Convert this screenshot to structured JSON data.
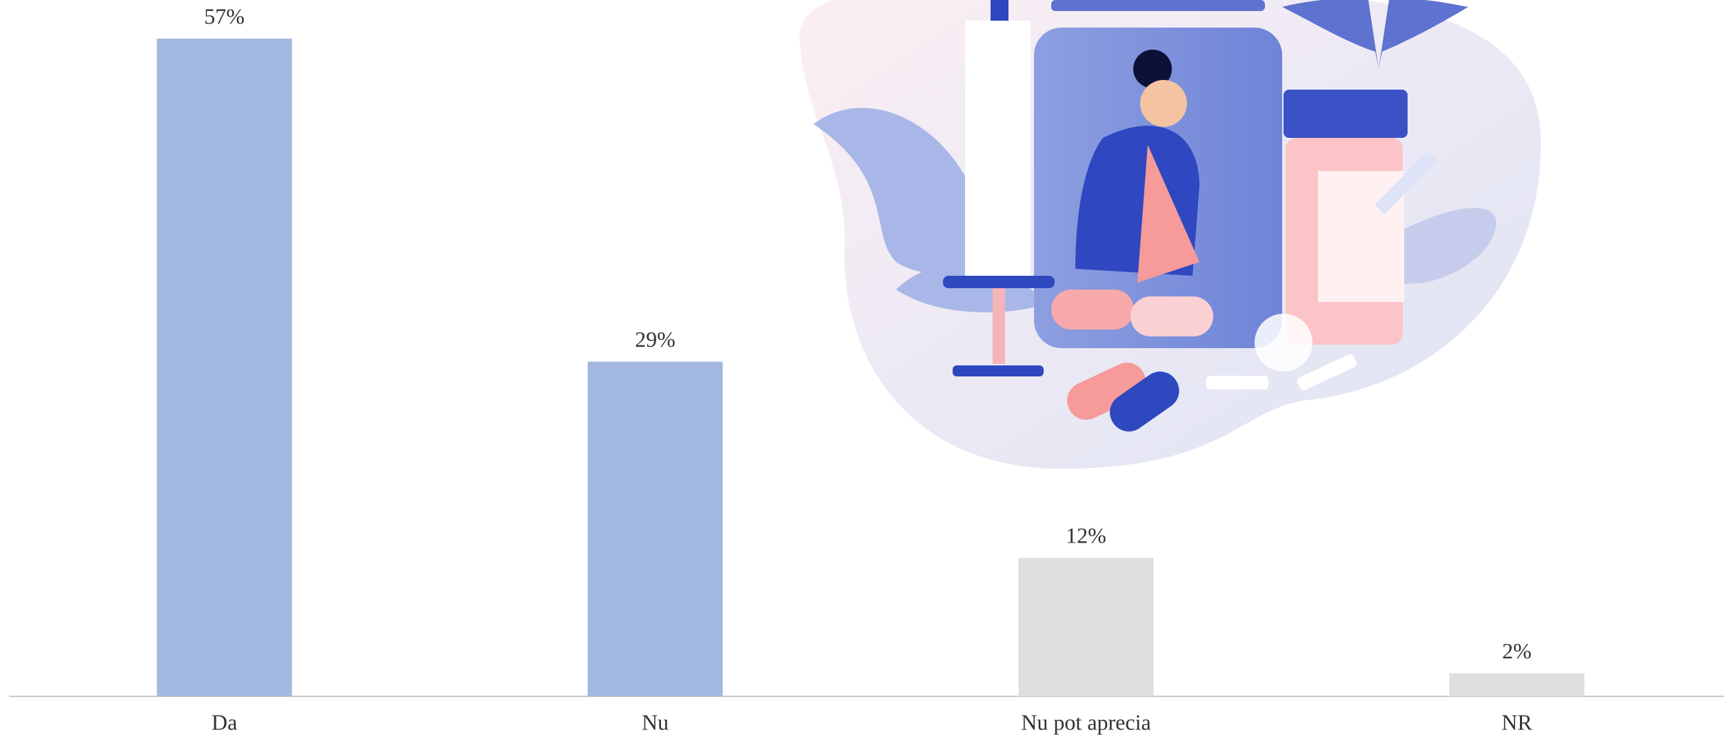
{
  "chart_data": {
    "type": "bar",
    "categories": [
      "Da",
      "Nu",
      "Nu pot aprecia",
      "NR"
    ],
    "values": [
      57,
      29,
      12,
      2
    ],
    "value_labels": [
      "57%",
      "29%",
      "12%",
      "2%"
    ],
    "colors": [
      "#a2b8e0",
      "#a2b8e0",
      "#dedede",
      "#dedede"
    ]
  }
}
